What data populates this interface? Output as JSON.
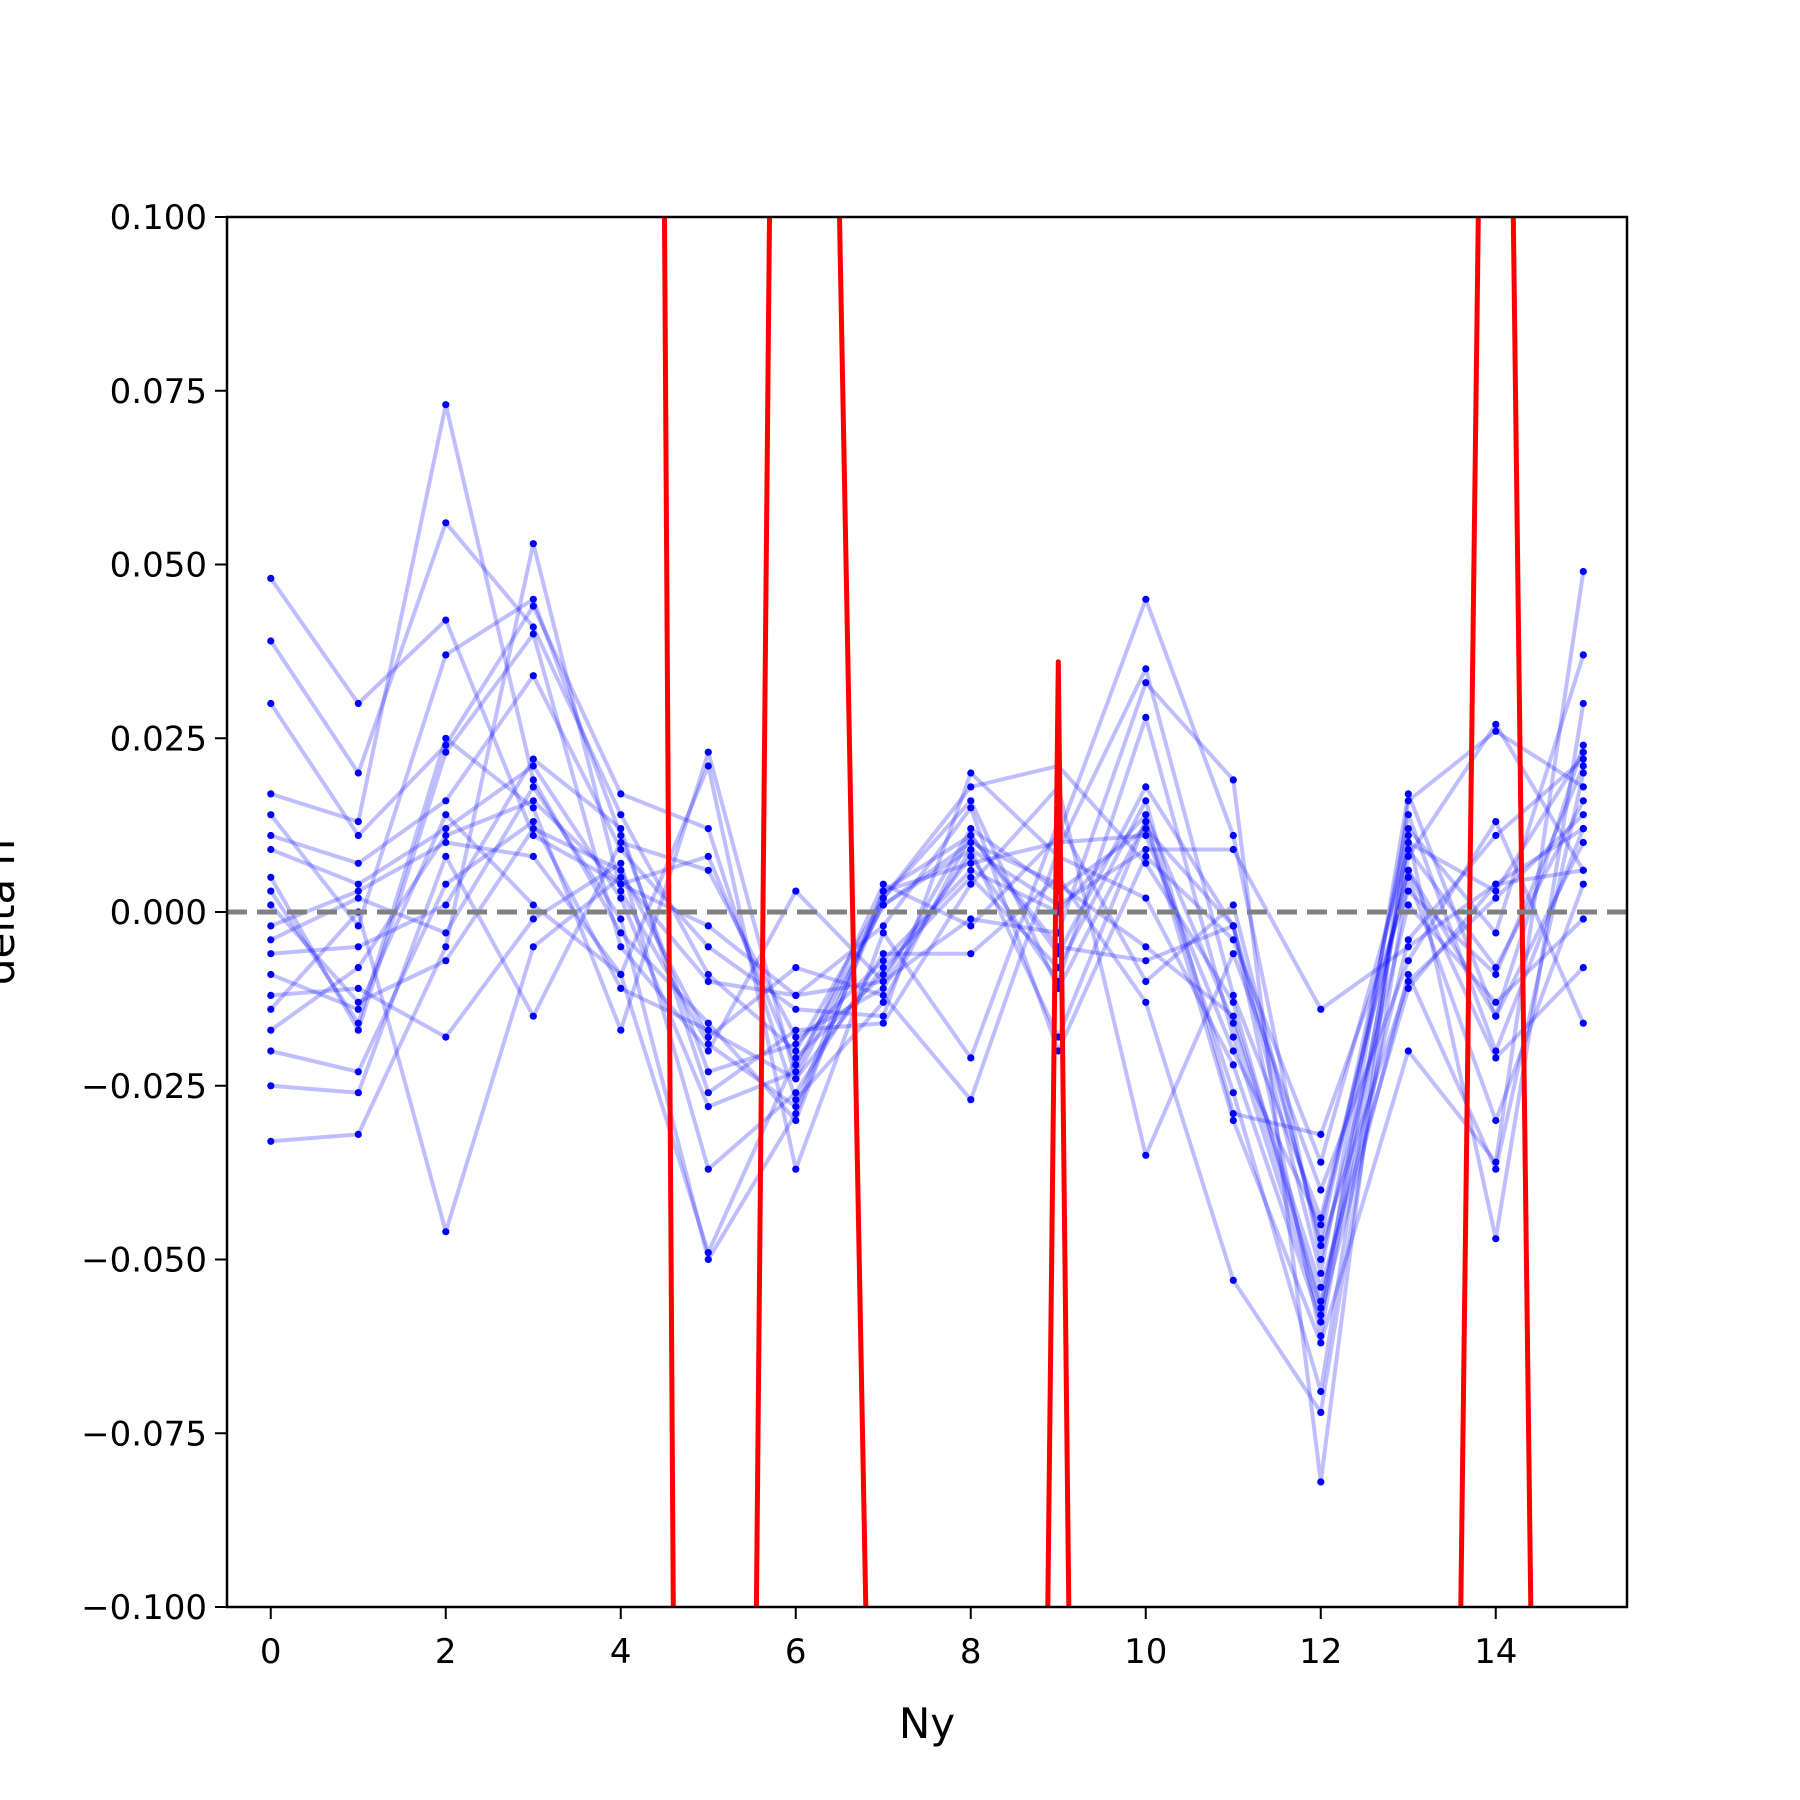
{
  "chart_data": {
    "type": "line",
    "title": "",
    "xlabel": "Ny",
    "ylabel": "delta n",
    "xlim": [
      -0.5,
      15.5
    ],
    "ylim": [
      -0.1,
      0.1
    ],
    "x_ticks": [
      "0",
      "2",
      "4",
      "6",
      "8",
      "10",
      "12",
      "14"
    ],
    "y_ticks": [
      "−0.100",
      "−0.075",
      "−0.050",
      "−0.025",
      "0.000",
      "0.025",
      "0.050",
      "0.075",
      "0.100"
    ],
    "grid": false,
    "legend": "none",
    "reference_line": {
      "y": 0.0,
      "style": "dashed",
      "color": "#808080"
    },
    "colors": {
      "ensemble": "#0000ff",
      "highlight": "#ff0000",
      "reference": "#808080"
    },
    "x": [
      0,
      1,
      2,
      3,
      4,
      5,
      6,
      7,
      8,
      9,
      10,
      11,
      12,
      13,
      14,
      15
    ],
    "ensemble_series": [
      [
        0.048,
        0.03,
        0.042,
        0.011,
        0.004,
        -0.002,
        -0.012,
        -0.01,
        0.012,
        0.003,
        0.012,
        -0.002,
        -0.047,
        0.012,
        -0.003,
        0.037
      ],
      [
        0.039,
        0.02,
        0.056,
        0.041,
        0.014,
        -0.009,
        -0.02,
        0.002,
        0.018,
        0.021,
        0.007,
        -0.013,
        -0.057,
        0.008,
        0.027,
        0.006
      ],
      [
        0.03,
        0.011,
        0.024,
        0.044,
        0.017,
        0.012,
        -0.027,
        -0.013,
        0.011,
        -0.006,
        0.018,
        -0.002,
        -0.052,
        0.014,
        -0.02,
        0.012
      ],
      [
        0.017,
        0.013,
        0.073,
        0.019,
        -0.003,
        -0.016,
        -0.03,
        0.003,
        0.007,
        0.01,
        0.011,
        -0.02,
        -0.045,
        0.006,
        -0.015,
        0.024
      ],
      [
        0.014,
        -0.002,
        0.037,
        0.045,
        0.011,
        -0.023,
        -0.019,
        -0.007,
        0.006,
        0.0,
        0.014,
        -0.016,
        -0.056,
        -0.004,
        0.011,
        0.022
      ],
      [
        0.011,
        0.007,
        0.016,
        0.034,
        0.009,
        -0.005,
        -0.014,
        -0.015,
        0.02,
        0.008,
        0.002,
        -0.022,
        -0.059,
        0.017,
        -0.015,
        0.01
      ],
      [
        0.009,
        0.004,
        0.012,
        0.021,
        0.002,
        -0.028,
        -0.023,
        0.004,
        -0.002,
        0.011,
        0.045,
        0.011,
        -0.05,
        0.001,
        -0.013,
        -0.001
      ],
      [
        0.005,
        -0.017,
        0.023,
        0.04,
        -0.005,
        -0.02,
        0.003,
        -0.01,
        -0.001,
        -0.003,
        0.033,
        0.019,
        -0.082,
        0.016,
        0.026,
        0.018
      ],
      [
        0.003,
        -0.016,
        0.025,
        0.015,
        -0.017,
        0.023,
        -0.024,
        0.001,
        0.009,
        -0.018,
        0.013,
        -0.03,
        -0.062,
        -0.02,
        -0.036,
        0.049
      ],
      [
        0.001,
        -0.013,
        -0.007,
        0.012,
        0.006,
        -0.018,
        -0.008,
        -0.012,
        -0.027,
        0.009,
        0.035,
        -0.012,
        -0.044,
        0.006,
        -0.021,
        -0.008
      ],
      [
        -0.002,
        0.003,
        0.01,
        0.008,
        -0.009,
        0.021,
        -0.037,
        -0.003,
        -0.021,
        0.013,
        -0.01,
        0.001,
        -0.048,
        -0.01,
        0.002,
        0.014
      ],
      [
        -0.004,
        0.002,
        -0.003,
        0.018,
        -0.001,
        -0.05,
        -0.029,
        0.002,
        0.016,
        -0.011,
        0.013,
        -0.026,
        -0.069,
        0.011,
        -0.047,
        0.03
      ],
      [
        -0.006,
        -0.005,
        0.001,
        0.022,
        0.012,
        -0.026,
        -0.017,
        -0.016,
        0.004,
        0.018,
        -0.035,
        -0.006,
        -0.04,
        -0.007,
        0.013,
        -0.016
      ],
      [
        -0.009,
        -0.014,
        0.014,
        0.001,
        -0.009,
        -0.049,
        -0.021,
        -0.009,
        0.008,
        -0.01,
        0.028,
        -0.018,
        -0.058,
        -0.009,
        -0.037,
        0.02
      ],
      [
        -0.012,
        -0.011,
        -0.018,
        -0.001,
        0.007,
        -0.037,
        -0.026,
        -0.006,
        -0.006,
        0.005,
        -0.013,
        -0.053,
        -0.072,
        0.005,
        -0.03,
        0.004
      ],
      [
        -0.014,
        0.0,
        -0.046,
        -0.005,
        0.005,
        -0.01,
        -0.012,
        -0.002,
        0.015,
        -0.02,
        0.008,
        -0.004,
        -0.036,
        0.009,
        -0.008,
        0.016
      ],
      [
        -0.017,
        -0.008,
        0.011,
        0.016,
        0.004,
        0.008,
        -0.022,
        0.001,
        0.01,
        0.004,
        -0.005,
        -0.015,
        -0.054,
        -0.011,
        0.004,
        0.006
      ],
      [
        -0.02,
        -0.023,
        0.004,
        0.013,
        -0.011,
        -0.017,
        -0.024,
        -0.008,
        0.005,
        -0.008,
        0.016,
        -0.029,
        -0.032,
        0.003,
        -0.009,
        0.021
      ],
      [
        -0.025,
        -0.026,
        0.008,
        -0.015,
        0.01,
        0.006,
        -0.018,
        -0.011,
        0.009,
        0.001,
        0.009,
        0.009,
        -0.014,
        -0.005,
        0.004,
        0.012
      ],
      [
        -0.033,
        -0.032,
        -0.005,
        0.053,
        0.003,
        -0.019,
        -0.028,
        0.003,
        0.011,
        -0.005,
        -0.007,
        -0.002,
        -0.061,
        0.01,
        0.003,
        0.023
      ]
    ],
    "highlight_series": [
      {
        "color": "#ff0000",
        "segments": [
          {
            "x": [
              4.5,
              4.6
            ],
            "y": [
              0.1,
              -0.1
            ]
          },
          {
            "x": [
              5.55,
              5.7
            ],
            "y": [
              -0.1,
              0.1
            ]
          },
          {
            "x": [
              6.5,
              6.8
            ],
            "y": [
              0.1,
              -0.1
            ]
          },
          {
            "x": [
              8.88,
              9.0,
              9.12
            ],
            "y": [
              -0.1,
              0.036,
              -0.1
            ]
          },
          {
            "x": [
              13.6,
              13.8
            ],
            "y": [
              -0.1,
              0.1
            ]
          },
          {
            "x": [
              14.2,
              14.4
            ],
            "y": [
              0.1,
              -0.1
            ]
          }
        ]
      }
    ]
  }
}
